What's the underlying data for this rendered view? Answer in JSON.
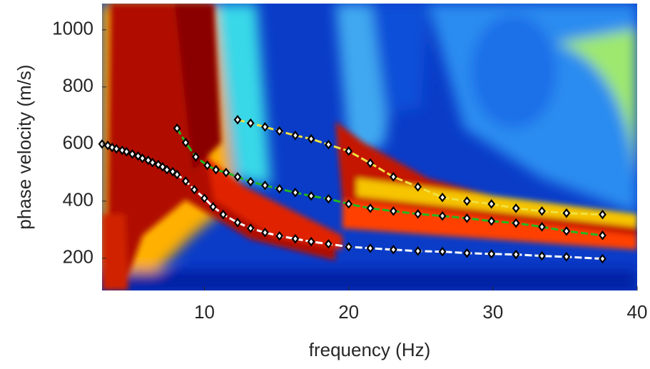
{
  "chart_data": {
    "type": "scatter",
    "xlabel": "frequency (Hz)",
    "ylabel": "phase velocity (m/s)",
    "xlim": [
      2.9,
      40
    ],
    "ylim": [
      87,
      1092
    ],
    "xticks": [
      10,
      20,
      30,
      40
    ],
    "yticks": [
      200,
      400,
      600,
      800,
      1000
    ],
    "series": [
      {
        "color": "#ffffff",
        "x": [
          2.9,
          3.3,
          3.6,
          3.9,
          4.3,
          4.6,
          5.0,
          5.4,
          5.7,
          6.1,
          6.4,
          6.8,
          7.1,
          7.4,
          7.8,
          8.1,
          8.7,
          9.3,
          10.0,
          10.6,
          11.3,
          12.3,
          13.2,
          14.2,
          15.2,
          16.3,
          17.4,
          18.6,
          20.0,
          21.5,
          23.1,
          24.8,
          26.5,
          28.2,
          29.9,
          31.6,
          33.4,
          35.1,
          37.6
        ],
        "values": [
          600,
          595,
          588,
          583,
          578,
          573,
          565,
          558,
          550,
          543,
          535,
          528,
          520,
          510,
          503,
          493,
          470,
          440,
          410,
          380,
          353,
          325,
          305,
          290,
          278,
          268,
          258,
          250,
          240,
          235,
          230,
          225,
          223,
          218,
          215,
          213,
          208,
          205,
          198
        ]
      },
      {
        "color": "#22b822",
        "x": [
          8.1,
          8.7,
          9.4,
          10.2,
          10.8,
          11.5,
          12.3,
          13.2,
          14.2,
          15.2,
          16.3,
          17.4,
          18.6,
          20.0,
          21.5,
          23.1,
          24.8,
          26.5,
          28.2,
          29.9,
          31.6,
          33.4,
          35.1,
          37.6
        ],
        "values": [
          655,
          605,
          555,
          525,
          510,
          500,
          485,
          468,
          455,
          443,
          430,
          418,
          408,
          390,
          375,
          365,
          355,
          348,
          340,
          330,
          323,
          310,
          295,
          280
        ]
      },
      {
        "color": "#f0e040",
        "x": [
          12.3,
          13.2,
          14.2,
          15.2,
          16.3,
          17.4,
          18.6,
          20.0,
          21.5,
          23.1,
          24.8,
          26.5,
          28.2,
          29.9,
          31.6,
          33.4,
          35.1,
          37.6
        ],
        "values": [
          685,
          673,
          660,
          645,
          630,
          618,
          598,
          575,
          533,
          485,
          450,
          413,
          400,
          390,
          375,
          365,
          358,
          353
        ]
      }
    ]
  }
}
